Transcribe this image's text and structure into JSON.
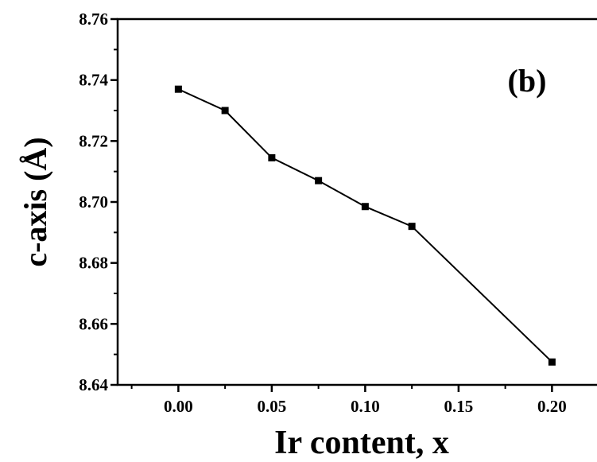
{
  "chart_data": {
    "type": "line",
    "title": "",
    "panel_label": "(b)",
    "xlabel": "Ir content, x",
    "ylabel": "c-axis (Å)",
    "xlim": [
      -0.0325,
      0.2275
    ],
    "ylim": [
      8.64,
      8.76
    ],
    "x_ticks": [
      0.0,
      0.05,
      0.1,
      0.15,
      0.2
    ],
    "x_tick_labels": [
      "0.00",
      "0.05",
      "0.10",
      "0.15",
      "0.20"
    ],
    "y_ticks": [
      8.64,
      8.66,
      8.68,
      8.7,
      8.72,
      8.74,
      8.76
    ],
    "y_tick_labels": [
      "8.64",
      "8.66",
      "8.68",
      "8.70",
      "8.72",
      "8.74",
      "8.76"
    ],
    "grid": false,
    "series": [
      {
        "marker": "square",
        "color": "#000000",
        "x": [
          0.0,
          0.025,
          0.05,
          0.075,
          0.1,
          0.125,
          0.2
        ],
        "y": [
          8.737,
          8.73,
          8.7145,
          8.707,
          8.6985,
          8.692,
          8.6475
        ]
      }
    ]
  }
}
